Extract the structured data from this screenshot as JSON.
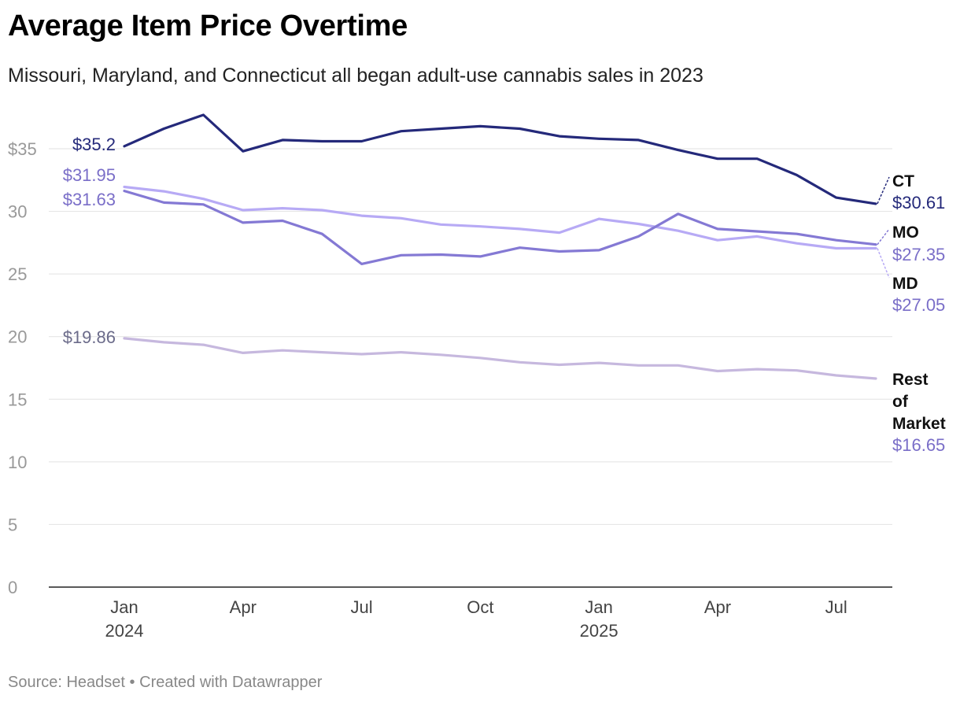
{
  "title": "Average Item Price Overtime",
  "subtitle": "Missouri, Maryland, and Connecticut all began adult-use cannabis sales in 2023",
  "footer": {
    "source": "Source: Headset",
    "separator": "•",
    "credit": "Created with Datawrapper"
  },
  "chart_data": {
    "type": "line",
    "ylim": [
      0,
      37.5
    ],
    "y_ticks": [
      0,
      5,
      10,
      15,
      20,
      25,
      30,
      35
    ],
    "y_tick_labels": [
      "0",
      "5",
      "10",
      "15",
      "20",
      "25",
      "30",
      "$35"
    ],
    "x": [
      "2024-01",
      "2024-02",
      "2024-03",
      "2024-04",
      "2024-05",
      "2024-06",
      "2024-07",
      "2024-08",
      "2024-09",
      "2024-10",
      "2024-11",
      "2024-12",
      "2025-01",
      "2025-02",
      "2025-03",
      "2025-04",
      "2025-05",
      "2025-06",
      "2025-07",
      "2025-08"
    ],
    "x_ticks": [
      {
        "index": 0,
        "month": "Jan",
        "year": "2024"
      },
      {
        "index": 3,
        "month": "Apr",
        "year": ""
      },
      {
        "index": 6,
        "month": "Jul",
        "year": ""
      },
      {
        "index": 9,
        "month": "Oct",
        "year": ""
      },
      {
        "index": 12,
        "month": "Jan",
        "year": "2025"
      },
      {
        "index": 15,
        "month": "Apr",
        "year": ""
      },
      {
        "index": 18,
        "month": "Jul",
        "year": ""
      }
    ],
    "grid": true,
    "series": [
      {
        "name": "CT",
        "color": "#24297a",
        "values": [
          35.2,
          36.6,
          37.7,
          34.8,
          35.7,
          35.6,
          35.6,
          36.4,
          36.6,
          36.8,
          36.6,
          36.0,
          35.8,
          35.7,
          34.9,
          34.2,
          34.2,
          32.9,
          31.1,
          30.61
        ],
        "start_label": "$35.2",
        "end_label": "$30.61"
      },
      {
        "name": "MD",
        "color": "#b7aaf5",
        "values": [
          31.95,
          31.6,
          31.0,
          30.1,
          30.25,
          30.1,
          29.65,
          29.45,
          28.95,
          28.8,
          28.6,
          28.3,
          29.4,
          29.0,
          28.45,
          27.7,
          28.0,
          27.45,
          27.05,
          27.05
        ],
        "start_label": "$31.95",
        "end_label": "$27.05"
      },
      {
        "name": "MO",
        "color": "#8479d4",
        "values": [
          31.63,
          30.7,
          30.55,
          29.1,
          29.25,
          28.2,
          25.8,
          26.5,
          26.55,
          26.4,
          27.1,
          26.8,
          26.9,
          28.0,
          29.8,
          28.6,
          28.4,
          28.2,
          27.7,
          27.35
        ],
        "start_label": "$31.63",
        "end_label": "$27.35"
      },
      {
        "name": "Rest of Market",
        "color": "#c6b8de",
        "values": [
          19.86,
          19.55,
          19.35,
          18.7,
          18.9,
          18.75,
          18.6,
          18.75,
          18.55,
          18.3,
          17.95,
          17.75,
          17.9,
          17.7,
          17.7,
          17.25,
          17.4,
          17.3,
          16.9,
          16.65
        ],
        "start_label": "$19.86",
        "end_label": "$16.65"
      }
    ],
    "end_label_colors": {
      "CT": "#24297a",
      "MO": "#7a6ec8",
      "MD": "#7a6ec8",
      "Rest of Market": "#7a6ec8"
    },
    "start_label_colors": {
      "CT": "#24297a",
      "MD": "#7a6ec8",
      "MO": "#7a6ec8",
      "Rest of Market": "#6b6b8a"
    }
  }
}
